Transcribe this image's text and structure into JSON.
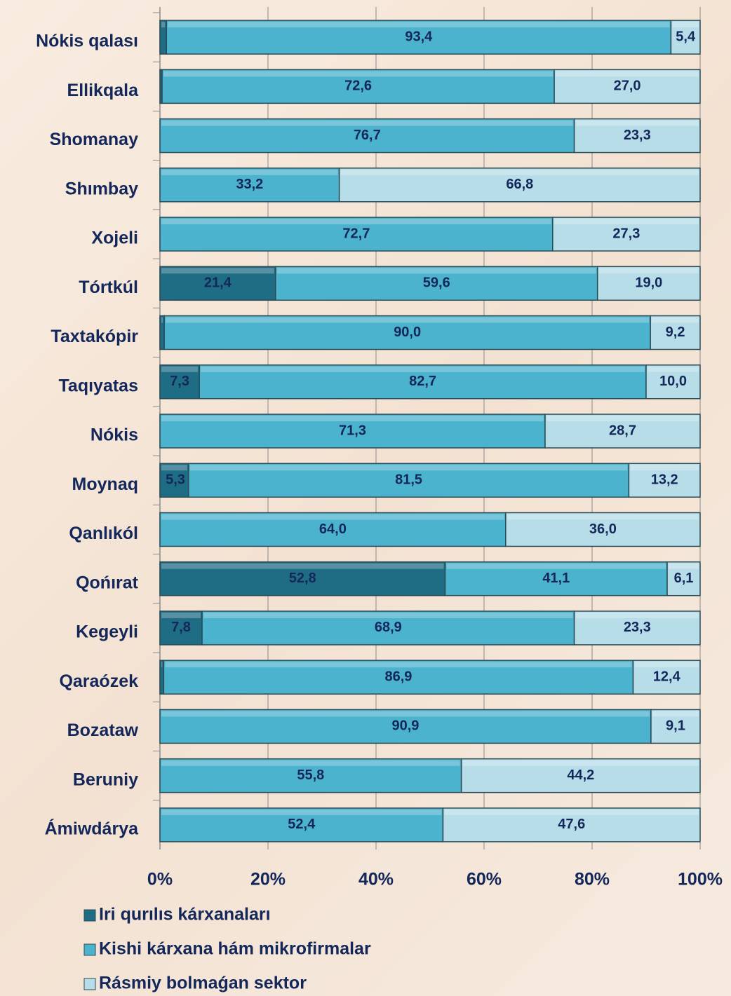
{
  "chart_data": {
    "type": "stacked-bar-horizontal",
    "categories": [
      "Nókis qalası",
      "Ellikqala",
      "Shomanay",
      "Shımbay",
      "Xojeli",
      "Tórtkúl",
      "Taxtakópir",
      "Taqıyatas",
      "Nókis",
      "Moynaq",
      "Qanlıkól",
      "Qońırat",
      "Kegeyli",
      "Qaraózek",
      "Bozataw",
      "Beruniy",
      "Ámiwdárya"
    ],
    "series": [
      {
        "name": "Iri qurılıs kárxanaları",
        "color": "#1f6d84",
        "values": [
          1.2,
          0.4,
          null,
          null,
          null,
          21.4,
          0.8,
          7.3,
          null,
          5.3,
          null,
          52.8,
          7.8,
          0.7,
          null,
          null,
          null
        ],
        "value_labels": [
          "1,2",
          "0,4",
          null,
          null,
          null,
          "21,4",
          "0,8",
          "7,3",
          null,
          "5,3",
          null,
          "52,8",
          "7,8",
          "0,7",
          null,
          null,
          null
        ]
      },
      {
        "name": "Kishi kárxana hám mikrofirmalar",
        "color": "#4cb3cf",
        "values": [
          93.4,
          72.6,
          76.7,
          33.2,
          72.7,
          59.6,
          90.0,
          82.7,
          71.3,
          81.5,
          64.0,
          41.1,
          68.9,
          86.9,
          90.9,
          55.8,
          52.4
        ],
        "value_labels": [
          "93,4",
          "72,6",
          "76,7",
          "33,2",
          "72,7",
          "59,6",
          "90,0",
          "82,7",
          "71,3",
          "81,5",
          "64,0",
          "41,1",
          "68,9",
          "86,9",
          "90,9",
          "55,8",
          "52,4"
        ]
      },
      {
        "name": "Rásmiy bolmaǵan sektor",
        "color": "#b7dde9",
        "values": [
          5.4,
          27.0,
          23.3,
          66.8,
          27.3,
          19.0,
          9.2,
          10.0,
          28.7,
          13.2,
          36.0,
          6.1,
          23.3,
          12.4,
          9.1,
          44.2,
          47.6
        ],
        "value_labels": [
          "5,4",
          "27,0",
          "23,3",
          "66,8",
          "27,3",
          "19,0",
          "9,2",
          "10,0",
          "28,7",
          "13,2",
          "36,0",
          "6,1",
          "23,3",
          "12,4",
          "9,1",
          "44,2",
          "47,6"
        ]
      }
    ],
    "xlim": [
      0,
      100
    ],
    "xticks": [
      {
        "value": 0,
        "label": "0%"
      },
      {
        "value": 20,
        "label": "20%"
      },
      {
        "value": 40,
        "label": "40%"
      },
      {
        "value": 60,
        "label": "60%"
      },
      {
        "value": 80,
        "label": "80%"
      },
      {
        "value": 100,
        "label": "100%"
      }
    ],
    "grid": true
  }
}
